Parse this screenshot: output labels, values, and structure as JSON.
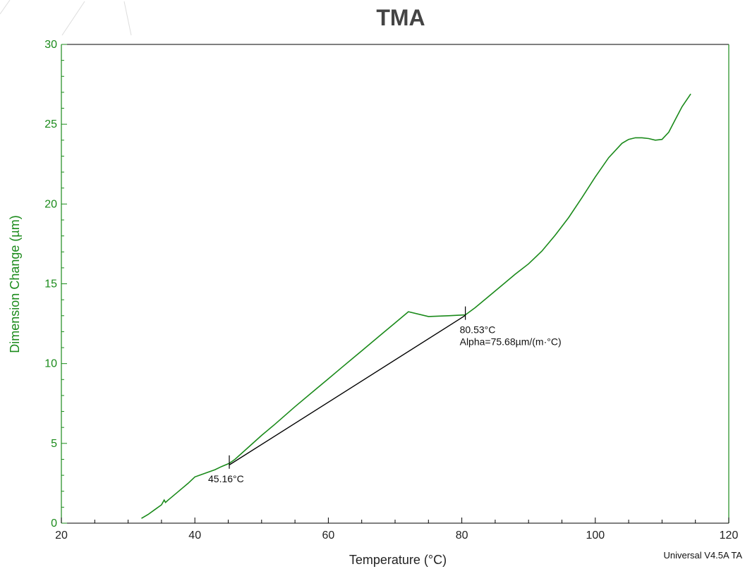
{
  "chart_data": {
    "type": "line",
    "title": "TMA",
    "xlabel": "Temperature (°C)",
    "ylabel": "Dimension Change (µm)",
    "xlim": [
      20,
      120
    ],
    "ylim": [
      0,
      30
    ],
    "x_ticks": [
      20,
      40,
      60,
      80,
      100,
      120
    ],
    "y_ticks": [
      0,
      5,
      10,
      15,
      20,
      25,
      30
    ],
    "grid": false,
    "colors": {
      "series": "#1a8a1a",
      "y_axis": "#1a8a1a",
      "fit_line": "#000000",
      "axis": "#000000"
    },
    "series": [
      {
        "x": [
          32,
          33,
          34,
          35,
          35.4,
          35.6,
          36,
          37,
          38,
          39,
          40,
          41,
          42,
          43,
          44,
          45,
          45.16,
          46,
          48,
          50,
          52,
          55,
          58,
          60,
          62,
          65,
          68,
          70,
          72,
          75,
          78,
          80.53,
          82,
          84,
          86,
          88,
          90,
          92,
          94,
          96,
          98,
          100,
          102,
          104,
          105,
          106,
          107,
          108,
          109,
          110,
          111,
          112,
          113,
          114.3
        ],
        "y": [
          0.3,
          0.55,
          0.85,
          1.15,
          1.45,
          1.3,
          1.45,
          1.8,
          2.15,
          2.5,
          2.9,
          3.05,
          3.2,
          3.35,
          3.55,
          3.72,
          3.75,
          4.0,
          4.75,
          5.5,
          6.2,
          7.3,
          8.35,
          9.05,
          9.75,
          10.8,
          11.85,
          12.55,
          13.25,
          12.95,
          13.0,
          13.05,
          13.5,
          14.2,
          14.9,
          15.6,
          16.25,
          17.05,
          18.05,
          19.15,
          20.4,
          21.7,
          22.9,
          23.8,
          24.05,
          24.15,
          24.15,
          24.1,
          24.0,
          24.05,
          24.5,
          25.3,
          26.1,
          26.9
        ]
      }
    ],
    "fit_line": {
      "x": [
        45.16,
        80.53
      ],
      "y": [
        3.65,
        13.02
      ]
    },
    "annotations": [
      {
        "x": 45.16,
        "y": 3.72,
        "label": "45.16°C"
      },
      {
        "x": 80.53,
        "y": 13.05,
        "label": "80.53°C",
        "label2": "Alpha=75.68µm/(m·°C)"
      }
    ],
    "footer": "Universal V4.5A TA"
  }
}
